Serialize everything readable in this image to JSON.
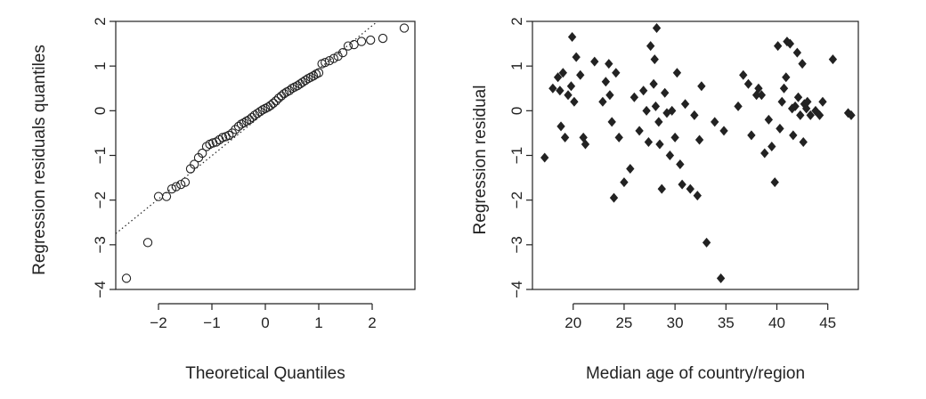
{
  "colors": {
    "ink": "#222222",
    "marker": "#222222",
    "background": "#ffffff"
  },
  "chart_data": [
    {
      "type": "scatter",
      "title": "",
      "xlabel": "Theoretical Quantiles",
      "ylabel": "Regression residuals quantiles",
      "xlim": [
        -2.8,
        2.8
      ],
      "ylim": [
        -4,
        2
      ],
      "xticks": [
        -2,
        -1,
        0,
        1,
        2
      ],
      "yticks": [
        -4,
        -3,
        -2,
        -1,
        0,
        1,
        2
      ],
      "xtick_labels": [
        "−2",
        "−1",
        "0",
        "1",
        "2"
      ],
      "ytick_labels": [
        "−4",
        "−3",
        "−2",
        "−1",
        "0",
        "1",
        "2"
      ],
      "marker": "open-circle",
      "reference_line": {
        "style": "dotted",
        "points": [
          [
            -2.8,
            -2.75
          ],
          [
            2.1,
            2.0
          ]
        ]
      },
      "points": [
        [
          -2.6,
          -3.75
        ],
        [
          -2.2,
          -2.95
        ],
        [
          -2.0,
          -1.92
        ],
        [
          -1.85,
          -1.92
        ],
        [
          -1.75,
          -1.75
        ],
        [
          -1.67,
          -1.7
        ],
        [
          -1.58,
          -1.65
        ],
        [
          -1.5,
          -1.6
        ],
        [
          -1.4,
          -1.3
        ],
        [
          -1.33,
          -1.2
        ],
        [
          -1.25,
          -1.05
        ],
        [
          -1.18,
          -0.95
        ],
        [
          -1.1,
          -0.8
        ],
        [
          -1.04,
          -0.75
        ],
        [
          -0.98,
          -0.72
        ],
        [
          -0.92,
          -0.7
        ],
        [
          -0.86,
          -0.65
        ],
        [
          -0.8,
          -0.6
        ],
        [
          -0.74,
          -0.58
        ],
        [
          -0.68,
          -0.55
        ],
        [
          -0.62,
          -0.5
        ],
        [
          -0.56,
          -0.42
        ],
        [
          -0.5,
          -0.35
        ],
        [
          -0.45,
          -0.3
        ],
        [
          -0.4,
          -0.27
        ],
        [
          -0.35,
          -0.23
        ],
        [
          -0.3,
          -0.2
        ],
        [
          -0.25,
          -0.15
        ],
        [
          -0.2,
          -0.1
        ],
        [
          -0.15,
          -0.06
        ],
        [
          -0.1,
          -0.02
        ],
        [
          -0.05,
          0.02
        ],
        [
          0.0,
          0.05
        ],
        [
          0.05,
          0.08
        ],
        [
          0.1,
          0.12
        ],
        [
          0.15,
          0.17
        ],
        [
          0.2,
          0.22
        ],
        [
          0.25,
          0.28
        ],
        [
          0.3,
          0.33
        ],
        [
          0.35,
          0.38
        ],
        [
          0.4,
          0.42
        ],
        [
          0.45,
          0.45
        ],
        [
          0.5,
          0.5
        ],
        [
          0.55,
          0.53
        ],
        [
          0.6,
          0.56
        ],
        [
          0.65,
          0.6
        ],
        [
          0.7,
          0.64
        ],
        [
          0.75,
          0.68
        ],
        [
          0.8,
          0.72
        ],
        [
          0.85,
          0.75
        ],
        [
          0.9,
          0.78
        ],
        [
          0.95,
          0.82
        ],
        [
          1.0,
          0.85
        ],
        [
          1.06,
          1.05
        ],
        [
          1.12,
          1.08
        ],
        [
          1.2,
          1.12
        ],
        [
          1.28,
          1.17
        ],
        [
          1.36,
          1.22
        ],
        [
          1.45,
          1.3
        ],
        [
          1.55,
          1.45
        ],
        [
          1.66,
          1.48
        ],
        [
          1.8,
          1.55
        ],
        [
          1.97,
          1.58
        ],
        [
          2.2,
          1.62
        ],
        [
          2.6,
          1.85
        ]
      ]
    },
    {
      "type": "scatter",
      "title": "",
      "xlabel": "Median age of country/region",
      "ylabel": "Regression residual",
      "xlim": [
        16,
        48
      ],
      "ylim": [
        -4,
        2
      ],
      "xticks": [
        20,
        25,
        30,
        35,
        40,
        45
      ],
      "yticks": [
        -4,
        -3,
        -2,
        -1,
        0,
        1,
        2
      ],
      "xtick_labels": [
        "20",
        "25",
        "30",
        "35",
        "40",
        "45"
      ],
      "ytick_labels": [
        "−4",
        "−3",
        "−2",
        "−1",
        "0",
        "1",
        "2"
      ],
      "marker": "filled-diamond",
      "points": [
        [
          17.2,
          -1.05
        ],
        [
          18.0,
          0.5
        ],
        [
          18.5,
          0.75
        ],
        [
          18.7,
          0.45
        ],
        [
          18.8,
          -0.35
        ],
        [
          19.0,
          0.85
        ],
        [
          19.2,
          -0.6
        ],
        [
          19.5,
          0.35
        ],
        [
          19.8,
          0.55
        ],
        [
          19.9,
          1.65
        ],
        [
          20.1,
          0.2
        ],
        [
          20.3,
          1.2
        ],
        [
          20.7,
          0.8
        ],
        [
          21.0,
          -0.6
        ],
        [
          21.2,
          -0.75
        ],
        [
          22.1,
          1.1
        ],
        [
          22.9,
          0.2
        ],
        [
          23.2,
          0.65
        ],
        [
          23.5,
          1.05
        ],
        [
          23.6,
          0.35
        ],
        [
          23.8,
          -0.25
        ],
        [
          24.0,
          -1.95
        ],
        [
          24.2,
          0.85
        ],
        [
          24.5,
          -0.6
        ],
        [
          25.0,
          -1.6
        ],
        [
          25.6,
          -1.3
        ],
        [
          26.0,
          0.3
        ],
        [
          26.5,
          -0.45
        ],
        [
          26.9,
          0.45
        ],
        [
          27.2,
          0.0
        ],
        [
          27.4,
          -0.7
        ],
        [
          27.6,
          1.45
        ],
        [
          27.9,
          0.6
        ],
        [
          28.0,
          1.15
        ],
        [
          28.1,
          0.1
        ],
        [
          28.2,
          1.85
        ],
        [
          28.4,
          -0.25
        ],
        [
          28.5,
          -0.75
        ],
        [
          28.7,
          -1.75
        ],
        [
          29.0,
          0.4
        ],
        [
          29.2,
          -0.05
        ],
        [
          29.5,
          -1.0
        ],
        [
          29.7,
          0.0
        ],
        [
          30.0,
          -0.6
        ],
        [
          30.2,
          0.85
        ],
        [
          30.5,
          -1.2
        ],
        [
          30.7,
          -1.65
        ],
        [
          31.0,
          0.15
        ],
        [
          31.5,
          -1.75
        ],
        [
          31.9,
          -0.1
        ],
        [
          32.2,
          -1.9
        ],
        [
          32.4,
          -0.65
        ],
        [
          32.6,
          0.55
        ],
        [
          33.1,
          -2.95
        ],
        [
          33.9,
          -0.25
        ],
        [
          34.5,
          -3.75
        ],
        [
          34.8,
          -0.45
        ],
        [
          36.2,
          0.1
        ],
        [
          36.7,
          0.8
        ],
        [
          37.2,
          0.6
        ],
        [
          37.5,
          -0.55
        ],
        [
          38.0,
          0.35
        ],
        [
          38.2,
          0.5
        ],
        [
          38.5,
          0.35
        ],
        [
          38.8,
          -0.95
        ],
        [
          39.2,
          -0.2
        ],
        [
          39.5,
          -0.8
        ],
        [
          39.8,
          -1.6
        ],
        [
          40.1,
          1.45
        ],
        [
          40.3,
          -0.4
        ],
        [
          40.5,
          0.2
        ],
        [
          40.7,
          0.5
        ],
        [
          40.9,
          0.75
        ],
        [
          41.0,
          1.55
        ],
        [
          41.3,
          1.5
        ],
        [
          41.5,
          0.05
        ],
        [
          41.6,
          -0.55
        ],
        [
          41.8,
          0.1
        ],
        [
          42.0,
          1.3
        ],
        [
          42.1,
          0.3
        ],
        [
          42.3,
          -0.1
        ],
        [
          42.5,
          1.05
        ],
        [
          42.6,
          -0.7
        ],
        [
          42.7,
          0.15
        ],
        [
          42.9,
          0.05
        ],
        [
          43.0,
          0.2
        ],
        [
          43.3,
          -0.1
        ],
        [
          43.8,
          0.0
        ],
        [
          44.2,
          -0.1
        ],
        [
          44.5,
          0.2
        ],
        [
          45.5,
          1.15
        ],
        [
          47.0,
          -0.05
        ],
        [
          47.3,
          -0.1
        ]
      ]
    }
  ]
}
